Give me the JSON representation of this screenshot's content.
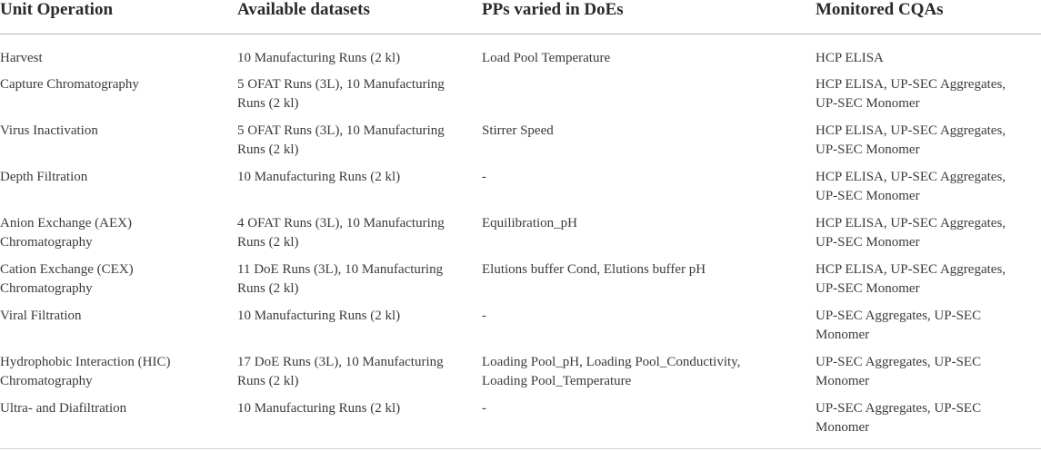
{
  "headers": [
    "Unit Operation",
    "Available datasets",
    "PPs varied in DoEs",
    "Monitored CQAs"
  ],
  "rows": [
    {
      "unit": "Harvest",
      "datasets": "10 Manufacturing Runs (2 kl)",
      "pps": "Load Pool Temperature",
      "cqas": "HCP ELISA"
    },
    {
      "unit": "Capture Chromatography",
      "datasets": "5 OFAT Runs (3L), 10 Manufacturing\nRuns (2 kl)",
      "pps": "",
      "cqas": "HCP ELISA, UP-SEC Aggregates,\nUP-SEC Monomer"
    },
    {
      "unit": "Virus Inactivation",
      "datasets": "5 OFAT Runs (3L), 10 Manufacturing\nRuns (2 kl)",
      "pps": "Stirrer Speed",
      "cqas": "HCP ELISA, UP-SEC Aggregates,\nUP-SEC Monomer"
    },
    {
      "unit": "Depth Filtration",
      "datasets": "10 Manufacturing Runs (2 kl)",
      "pps": "-",
      "cqas": "HCP ELISA, UP-SEC Aggregates,\nUP-SEC Monomer"
    },
    {
      "unit": "Anion Exchange (AEX)\nChromatography",
      "datasets": "4 OFAT Runs (3L), 10 Manufacturing\nRuns (2 kl)",
      "pps": "Equilibration_pH",
      "cqas": "HCP ELISA, UP-SEC Aggregates,\nUP-SEC Monomer"
    },
    {
      "unit": "Cation Exchange (CEX)\nChromatography",
      "datasets": "11 DoE Runs (3L), 10 Manufacturing\nRuns (2 kl)",
      "pps": "Elutions buffer Cond, Elutions buffer pH",
      "cqas": "HCP ELISA, UP-SEC Aggregates,\nUP-SEC Monomer"
    },
    {
      "unit": "Viral Filtration",
      "datasets": "10 Manufacturing Runs (2 kl)",
      "pps": "-",
      "cqas": "UP-SEC Aggregates, UP-SEC\nMonomer"
    },
    {
      "unit": "Hydrophobic Interaction (HIC)\nChromatography",
      "datasets": "17 DoE Runs (3L), 10 Manufacturing\nRuns (2 kl)",
      "pps": "Loading Pool_pH, Loading Pool_Conductivity,\nLoading Pool_Temperature",
      "cqas": "UP-SEC Aggregates, UP-SEC\nMonomer"
    },
    {
      "unit": "Ultra- and Diafiltration",
      "datasets": "10 Manufacturing Runs (2 kl)",
      "pps": "-",
      "cqas": "UP-SEC Aggregates, UP-SEC\nMonomer"
    }
  ]
}
